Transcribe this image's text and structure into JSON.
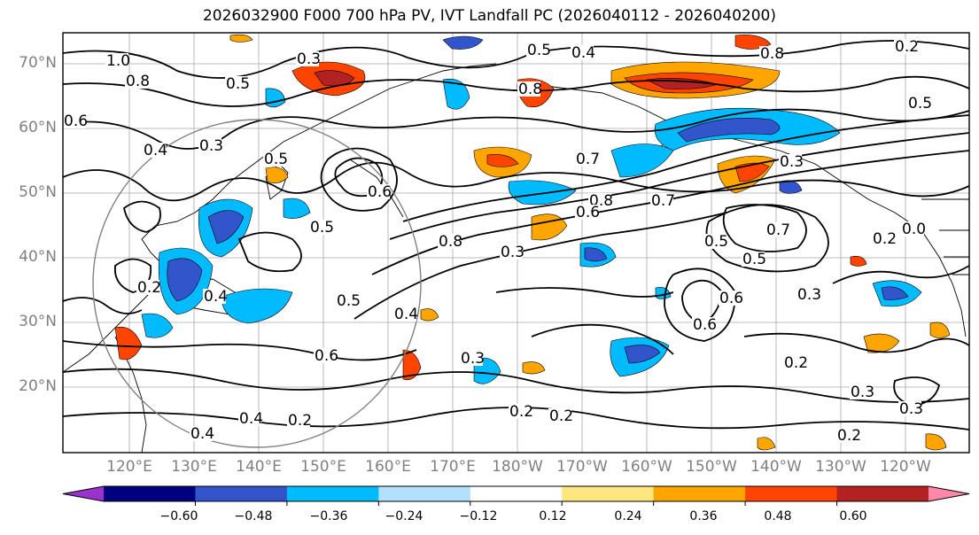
{
  "title": "2026032900 F000 700 hPa PV, IVT Landfall PC (2026040112 - 2026040200)",
  "lat_labels": [
    "70°N",
    "60°N",
    "50°N",
    "40°N",
    "30°N",
    "20°N"
  ],
  "lon_labels": [
    "120°E",
    "130°E",
    "140°E",
    "150°E",
    "160°E",
    "170°E",
    "180°W",
    "170°W",
    "160°W",
    "150°W",
    "140°W",
    "130°W",
    "120°W"
  ],
  "colorbar": {
    "colors": [
      "#9933cc",
      "#000080",
      "#3355cc",
      "#00bbff",
      "#b3e0ff",
      "#ffffff",
      "#ffe680",
      "#ffa500",
      "#ff4400",
      "#b22222",
      "#ff88aa"
    ],
    "tick_labels": [
      "−0.60",
      "−0.48",
      "−0.36",
      "−0.24",
      "−0.12",
      "0.12",
      "0.24",
      "0.36",
      "0.48",
      "0.60"
    ]
  },
  "contour_labels": [
    {
      "text": "1.0"
    },
    {
      "text": "0.8"
    },
    {
      "text": "0.6"
    },
    {
      "text": "0.5"
    },
    {
      "text": "0.3"
    },
    {
      "text": "0.4"
    },
    {
      "text": "0.3"
    },
    {
      "text": "0.5"
    },
    {
      "text": "0.6"
    },
    {
      "text": "0.5"
    },
    {
      "text": "0.2"
    },
    {
      "text": "0.4"
    },
    {
      "text": "0.5"
    },
    {
      "text": "0.4"
    },
    {
      "text": "0.6"
    },
    {
      "text": "0.4"
    },
    {
      "text": "0.2"
    },
    {
      "text": "0.5"
    },
    {
      "text": "0.4"
    },
    {
      "text": "0.8"
    },
    {
      "text": "0.8"
    },
    {
      "text": "0.3"
    },
    {
      "text": "0.7"
    },
    {
      "text": "0.8"
    },
    {
      "text": "0.6"
    },
    {
      "text": "0.7"
    },
    {
      "text": "0.3"
    },
    {
      "text": "0.5"
    },
    {
      "text": "0.7"
    },
    {
      "text": "0.5"
    },
    {
      "text": "0.6"
    },
    {
      "text": "0.6"
    },
    {
      "text": "0.3"
    },
    {
      "text": "0.2"
    },
    {
      "text": "0.3"
    },
    {
      "text": "0.3"
    },
    {
      "text": "0.2"
    },
    {
      "text": "0.2"
    },
    {
      "text": "0.5"
    },
    {
      "text": "0.8"
    },
    {
      "text": "0.0"
    },
    {
      "text": "0.2"
    },
    {
      "text": "0.3"
    },
    {
      "text": "0.2"
    },
    {
      "text": "0.4"
    },
    {
      "text": "0.2"
    }
  ]
}
